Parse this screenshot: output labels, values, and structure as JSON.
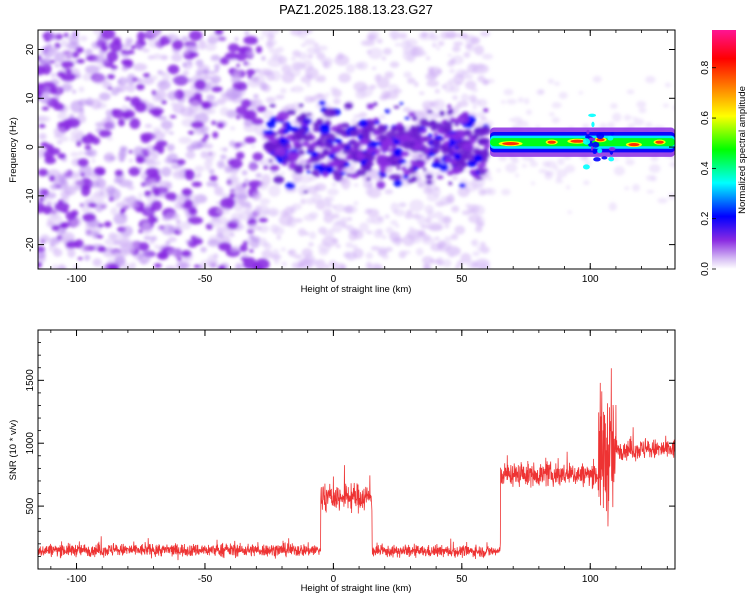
{
  "title": "PAZ1.2025.188.13.23.G27",
  "chart_data": [
    {
      "type": "heatmap",
      "xlabel": "Height of straight line (km)",
      "ylabel": "Frequency (Hz)",
      "xlim": [
        -115,
        133
      ],
      "ylim": [
        -25,
        24
      ],
      "x_ticks": [
        -100,
        -50,
        0,
        50,
        100
      ],
      "y_ticks": [
        -20,
        -10,
        0,
        10,
        20
      ],
      "colorbar": {
        "label": "Normalized spectral amplitude",
        "range": [
          0.0,
          0.95
        ],
        "ticks": [
          0.0,
          0.2,
          0.4,
          0.6,
          0.8
        ],
        "colormap": "rainbow",
        "colors": [
          "#ffffff",
          "#8a2be2",
          "#0000ff",
          "#00ffff",
          "#00ff00",
          "#ffff00",
          "#ff8000",
          "#ff0000",
          "#ff1493"
        ]
      },
      "regions": [
        {
          "x_range": [
            -115,
            -27
          ],
          "description": "scattered noise across all frequencies",
          "typical_amplitude": 0.05
        },
        {
          "x_range": [
            -27,
            60
          ],
          "center_freq_hz": 0.5,
          "spread_hz": 8,
          "typical_amplitude": 0.1
        },
        {
          "x_range": [
            60,
            133
          ],
          "center_freq_hz": 1.0,
          "spread_hz": 1.5,
          "peak_amplitude": 0.95
        }
      ]
    },
    {
      "type": "line",
      "xlabel": "Height of straight line (km)",
      "ylabel": "SNR (10 * v/v)",
      "xlim": [
        -115,
        133
      ],
      "ylim": [
        0,
        1900
      ],
      "x_ticks": [
        -100,
        -50,
        0,
        50,
        100
      ],
      "y_ticks": [
        500,
        1000,
        1500
      ],
      "color": "#ee3333",
      "segments": [
        {
          "x_range": [
            -115,
            -5
          ],
          "mean": 150,
          "noise": 50
        },
        {
          "x_range": [
            -5,
            15
          ],
          "mean": 570,
          "noise": 110
        },
        {
          "x_range": [
            15,
            65
          ],
          "mean": 140,
          "noise": 45
        },
        {
          "x_range": [
            65,
            103
          ],
          "mean": 750,
          "noise": 90
        },
        {
          "x_range": [
            103,
            110
          ],
          "mean": 900,
          "noise": 500
        },
        {
          "x_range": [
            110,
            133
          ],
          "mean": 950,
          "noise": 80
        }
      ]
    }
  ]
}
